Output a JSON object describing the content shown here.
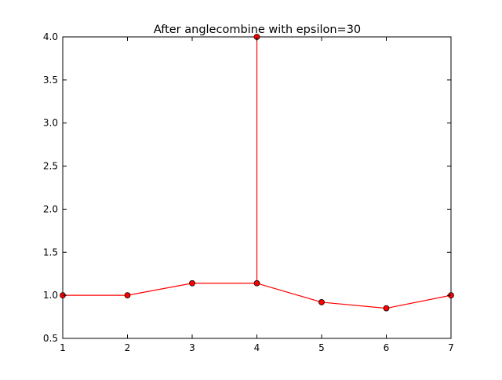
{
  "chart_data": {
    "type": "line",
    "title": "After anglecombine with epsilon=30",
    "xlabel": "",
    "ylabel": "",
    "xlim": [
      1,
      7
    ],
    "ylim": [
      0.5,
      4.0
    ],
    "grid": false,
    "legend": "none",
    "x": [
      1,
      2,
      3,
      4,
      4,
      4,
      5,
      6,
      7
    ],
    "series": [
      {
        "values": [
          1.0,
          1.0,
          1.14,
          1.14,
          4.0,
          1.14,
          0.92,
          0.85,
          1.0
        ],
        "color": "#ff0000",
        "marker": "circle"
      }
    ],
    "xticks": [
      "1",
      "2",
      "3",
      "4",
      "5",
      "6",
      "7"
    ],
    "yticks": [
      "0.5",
      "1.0",
      "1.5",
      "2.0",
      "2.5",
      "3.0",
      "3.5",
      "4.0"
    ]
  }
}
